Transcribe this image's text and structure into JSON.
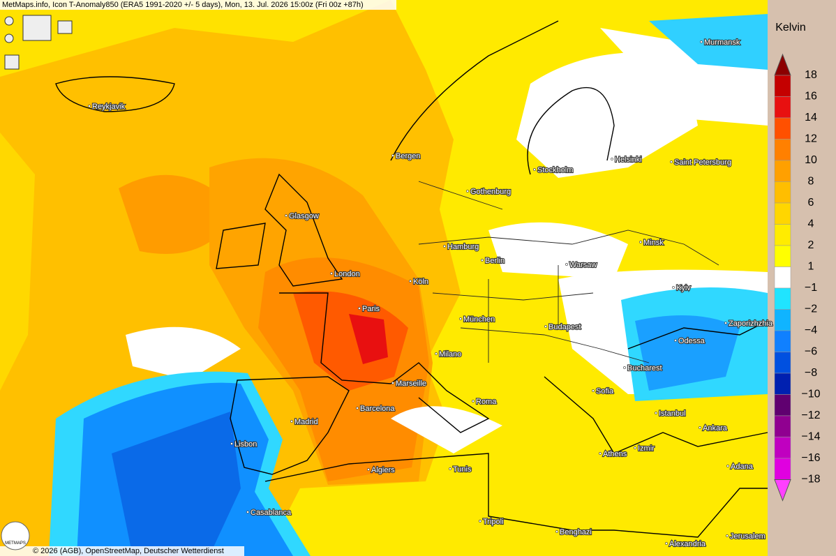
{
  "header": {
    "title": "MetMaps.info, Icon T-Anomaly850 (ERA5 1991-2020 +/- 5 days), Mon, 13. Jul. 2026 15:00z (Fri 00z +87h)"
  },
  "cities": [
    "Murmansk",
    "Reykjavik",
    "Bergen",
    "Helsinki",
    "Saint Petersburg",
    "Stockholm",
    "Gothenburg",
    "Glasgow",
    "Minsk",
    "Hamburg",
    "Berlin",
    "Warsaw",
    "London",
    "Köln",
    "Kyiv",
    "Paris",
    "München",
    "Zaporizhzhia",
    "Budapest",
    "Odessa",
    "Milano",
    "Bucharest",
    "Marseille",
    "Sofia",
    "Barcelona",
    "Roma",
    "Istanbul",
    "Madrid",
    "Ankara",
    "Lisbon",
    "Izmir",
    "Athens",
    "Algiers",
    "Tunis",
    "Adana",
    "Casablanca",
    "Tripoli",
    "Benghazi",
    "Jerusalem",
    "Alexandria"
  ],
  "legend": {
    "unit": "Kelvin",
    "labels": [
      "18",
      "16",
      "14",
      "12",
      "10",
      "8",
      "6",
      "4",
      "2",
      "1",
      "−1",
      "−2",
      "−4",
      "−6",
      "−8",
      "−10",
      "−12",
      "−14",
      "−16",
      "−18"
    ],
    "colors": [
      "#8c0000",
      "#c40000",
      "#e81010",
      "#ff5000",
      "#ff8000",
      "#ffa000",
      "#ffbe00",
      "#ffd600",
      "#ffec00",
      "#ffff00",
      "#ffffff",
      "#20e4ff",
      "#10b4ff",
      "#1080ff",
      "#0050e0",
      "#0020b0",
      "#600070",
      "#900090",
      "#c000c0",
      "#e000e0",
      "#ff40ff"
    ]
  },
  "footer": {
    "credit": "© 2026 (AGB), OpenStreetMap, Deutscher Wetterdienst"
  },
  "logo": {
    "text": "METMAPS"
  }
}
